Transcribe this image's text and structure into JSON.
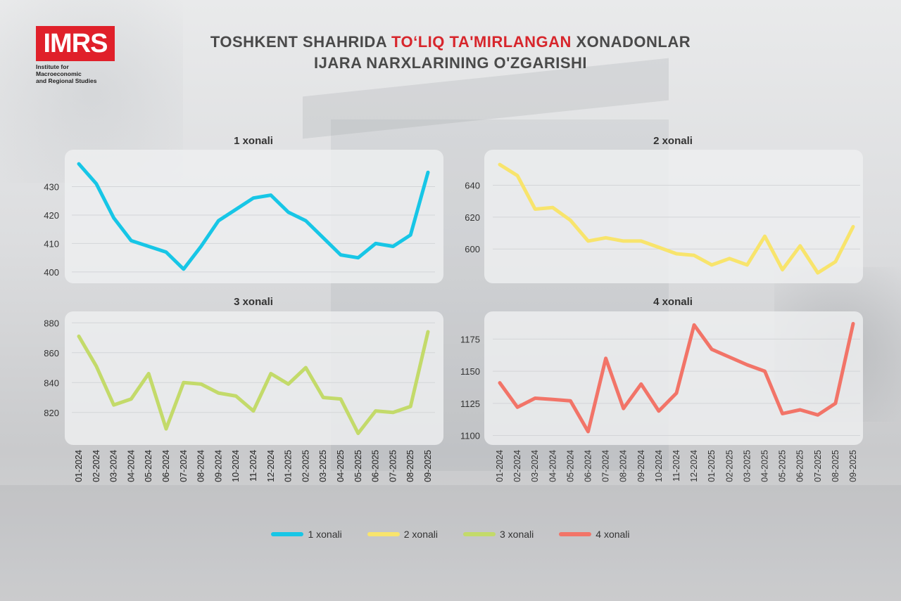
{
  "logo": {
    "mark": "IMRS",
    "subtitle_line1": "Institute for Macroeconomic",
    "subtitle_line2": "and Regional Studies",
    "color": "#e0202a"
  },
  "title": {
    "part1": "TOSHKENT SHAHRIDA ",
    "highlight": "TO‘LIQ TA'MIRLANGAN",
    "part2": " XONADONLAR",
    "line2": "IJARA NARXLARINING O'ZGARISHI",
    "highlight_color": "#d7262c"
  },
  "chart_data": [
    {
      "type": "line",
      "title": "1 xonali",
      "categories": [
        "01-2024",
        "02-2024",
        "03-2024",
        "04-2024",
        "05-2024",
        "06-2024",
        "07-2024",
        "08-2024",
        "09-2024",
        "10-2024",
        "11-2024",
        "12-2024",
        "01-2025",
        "02-2025",
        "03-2025",
        "04-2025",
        "05-2025",
        "06-2025",
        "07-2025",
        "08-2025",
        "09-2025"
      ],
      "series": [
        {
          "name": "1 xonali",
          "color": "#17c6e6",
          "values": [
            438,
            431,
            419,
            411,
            409,
            407,
            401,
            409,
            418,
            422,
            426,
            427,
            421,
            418,
            412,
            406,
            405,
            410,
            409,
            413,
            435
          ]
        }
      ],
      "yticks": [
        400,
        410,
        420,
        430
      ],
      "ylim": [
        398,
        440
      ],
      "grid": true,
      "show_x_ticks": true
    },
    {
      "type": "line",
      "title": "2 xonali",
      "categories": [
        "01-2024",
        "02-2024",
        "03-2024",
        "04-2024",
        "05-2024",
        "06-2024",
        "07-2024",
        "08-2024",
        "09-2024",
        "10-2024",
        "11-2024",
        "12-2024",
        "01-2025",
        "02-2025",
        "03-2025",
        "04-2025",
        "05-2025",
        "06-2025",
        "07-2025",
        "08-2025",
        "09-2025"
      ],
      "series": [
        {
          "name": "2 xonali",
          "color": "#f8e46c",
          "values": [
            653,
            646,
            625,
            626,
            618,
            605,
            607,
            605,
            605,
            601,
            597,
            596,
            590,
            594,
            590,
            608,
            587,
            602,
            585,
            592,
            614
          ]
        }
      ],
      "yticks": [
        600,
        620,
        640
      ],
      "ylim": [
        582,
        657
      ],
      "grid": true,
      "show_x_ticks": false
    },
    {
      "type": "line",
      "title": "3 xonali",
      "categories": [
        "01-2024",
        "02-2024",
        "03-2024",
        "04-2024",
        "05-2024",
        "06-2024",
        "07-2024",
        "08-2024",
        "09-2024",
        "10-2024",
        "11-2024",
        "12-2024",
        "01-2025",
        "02-2025",
        "03-2025",
        "04-2025",
        "05-2025",
        "06-2025",
        "07-2025",
        "08-2025",
        "09-2025"
      ],
      "series": [
        {
          "name": "3 xonali",
          "color": "#c3da6a",
          "values": [
            871,
            851,
            825,
            829,
            846,
            809,
            840,
            839,
            833,
            831,
            821,
            846,
            839,
            850,
            830,
            829,
            806,
            821,
            820,
            824,
            874
          ]
        }
      ],
      "yticks": [
        820,
        840,
        860,
        880
      ],
      "ylim": [
        802,
        882
      ],
      "grid": true,
      "show_x_ticks": true
    },
    {
      "type": "line",
      "title": "4 xonali",
      "categories": [
        "01-2024",
        "02-2024",
        "03-2024",
        "04-2024",
        "05-2024",
        "06-2024",
        "07-2024",
        "08-2024",
        "09-2024",
        "10-2024",
        "11-2024",
        "12-2024",
        "01-2025",
        "02-2025",
        "03-2025",
        "04-2025",
        "05-2025",
        "06-2025",
        "07-2025",
        "08-2025",
        "09-2025"
      ],
      "series": [
        {
          "name": "4 xonali",
          "color": "#f27468",
          "values": [
            1141,
            1122,
            1129,
            1128,
            1127,
            1103,
            1160,
            1121,
            1140,
            1119,
            1133,
            1186,
            1167,
            1161,
            1155,
            1150,
            1117,
            1120,
            1116,
            1125,
            1187
          ]
        }
      ],
      "yticks": [
        1100,
        1125,
        1150,
        1175
      ],
      "ylim": [
        1097,
        1190
      ],
      "grid": true,
      "show_x_ticks": true
    }
  ],
  "legend": [
    {
      "label": "1 xonali",
      "color": "#17c6e6"
    },
    {
      "label": "2 xonali",
      "color": "#f8e46c"
    },
    {
      "label": "3 xonali",
      "color": "#c3da6a"
    },
    {
      "label": "4 xonali",
      "color": "#f27468"
    }
  ]
}
